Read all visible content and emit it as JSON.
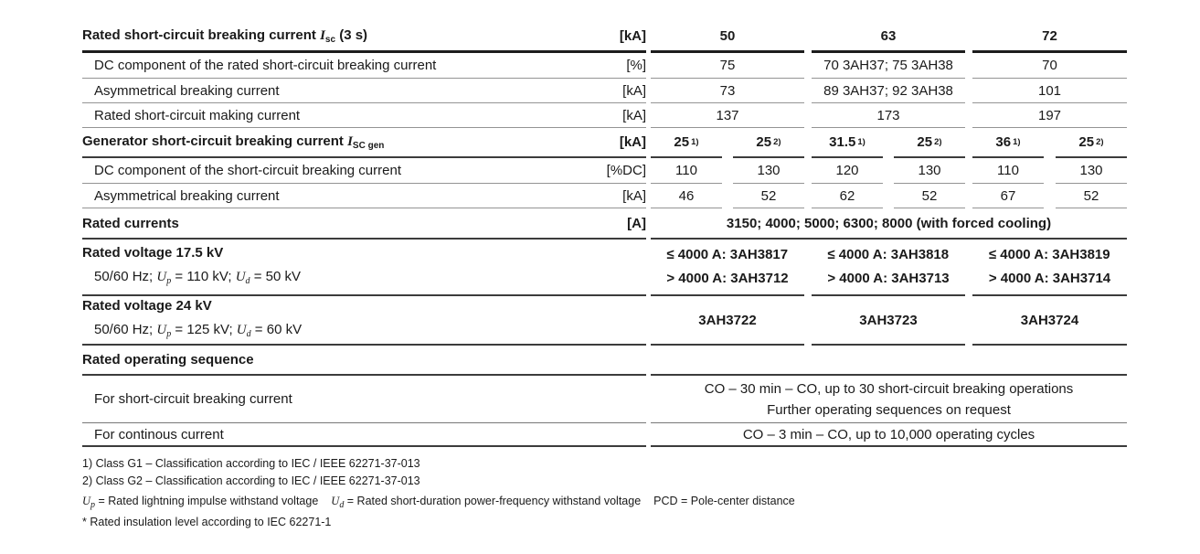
{
  "table": {
    "s1": {
      "header": {
        "label_pre": "Rated short-circuit breaking current ",
        "label_sym": "I",
        "label_sub": "sc",
        "label_post": " (3 s)",
        "unit": "[kA]",
        "cols": [
          "50",
          "63",
          "72"
        ]
      },
      "rows": [
        {
          "label": "DC component of the rated short-circuit breaking current",
          "unit": "[%]",
          "values": [
            "75",
            "70 3AH37; 75 3AH38",
            "70"
          ]
        },
        {
          "label": "Asymmetrical breaking current",
          "unit": "[kA]",
          "values": [
            "73",
            "89 3AH37; 92 3AH38",
            "101"
          ]
        },
        {
          "label": "Rated short-circuit making current",
          "unit": "[kA]",
          "values": [
            "137",
            "173",
            "197"
          ]
        }
      ]
    },
    "s2": {
      "header": {
        "label_pre": "Generator short-circuit breaking current ",
        "label_sym": "I",
        "label_sub": "SC gen",
        "unit": "[kA]",
        "subcols": [
          {
            "v": "25",
            "sup": "1)"
          },
          {
            "v": "25",
            "sup": "2)"
          },
          {
            "v": "31.5",
            "sup": "1)"
          },
          {
            "v": "25",
            "sup": "2)"
          },
          {
            "v": "36",
            "sup": "1)"
          },
          {
            "v": "25",
            "sup": "2)"
          }
        ]
      },
      "rows": [
        {
          "label": "DC component of the short-circuit breaking current",
          "unit": "[%DC]",
          "values": [
            "110",
            "130",
            "120",
            "130",
            "110",
            "130"
          ]
        },
        {
          "label": "Asymmetrical breaking current",
          "unit": "[kA]",
          "values": [
            "46",
            "52",
            "62",
            "52",
            "67",
            "52"
          ]
        }
      ]
    },
    "s3": {
      "label": "Rated currents",
      "unit": "[A]",
      "value": "3150; 4000; 5000; 6300; 8000 (with forced cooling)"
    },
    "s4": {
      "blocks": [
        {
          "title": "Rated voltage 17.5 kV",
          "cond_pre": "50/60 Hz; ",
          "cond_sym1": "U",
          "cond_sub1": "p",
          "cond_mid": " = 110 kV; ",
          "cond_sym2": "U",
          "cond_sub2": "d",
          "cond_post": " = 50 kV",
          "values": [
            {
              "l1": "≤ 4000 A: 3AH3817",
              "l2": "> 4000 A: 3AH3712"
            },
            {
              "l1": "≤ 4000 A: 3AH3818",
              "l2": "> 4000 A: 3AH3713"
            },
            {
              "l1": "≤ 4000 A: 3AH3819",
              "l2": "> 4000 A: 3AH3714"
            }
          ]
        },
        {
          "title": "Rated voltage 24 kV",
          "cond_pre": "50/60 Hz; ",
          "cond_sym1": "U",
          "cond_sub1": "p",
          "cond_mid": " = 125 kV; ",
          "cond_sym2": "U",
          "cond_sub2": "d",
          "cond_post": " = 60 kV",
          "values": [
            "3AH3722",
            "3AH3723",
            "3AH3724"
          ]
        }
      ]
    },
    "s5": {
      "header": "Rated operating sequence",
      "rows": [
        {
          "label": "For short-circuit breaking current",
          "line1": "CO – 30 min – CO, up to 30 short-circuit breaking operations",
          "line2": "Further operating sequences on request"
        },
        {
          "label": "For continous current",
          "line1": "CO – 3 min – CO, up to 10,000 operating cycles"
        }
      ]
    }
  },
  "footnotes": {
    "f1": "1) Class G1 – Classification according to IEC / IEEE 62271-37-013",
    "f2": "2) Class G2 – Classification according to IEC / IEEE 62271-37-013",
    "f3": {
      "sym1": "U",
      "sub1": "p",
      "seg1": " = Rated lightning impulse withstand voltage",
      "sym2": "U",
      "sub2": "d",
      "seg2": " = Rated short-duration power-frequency withstand voltage",
      "seg3": "PCD = Pole-center distance"
    },
    "f4": "* Rated insulation level according to IEC 62271-1"
  }
}
